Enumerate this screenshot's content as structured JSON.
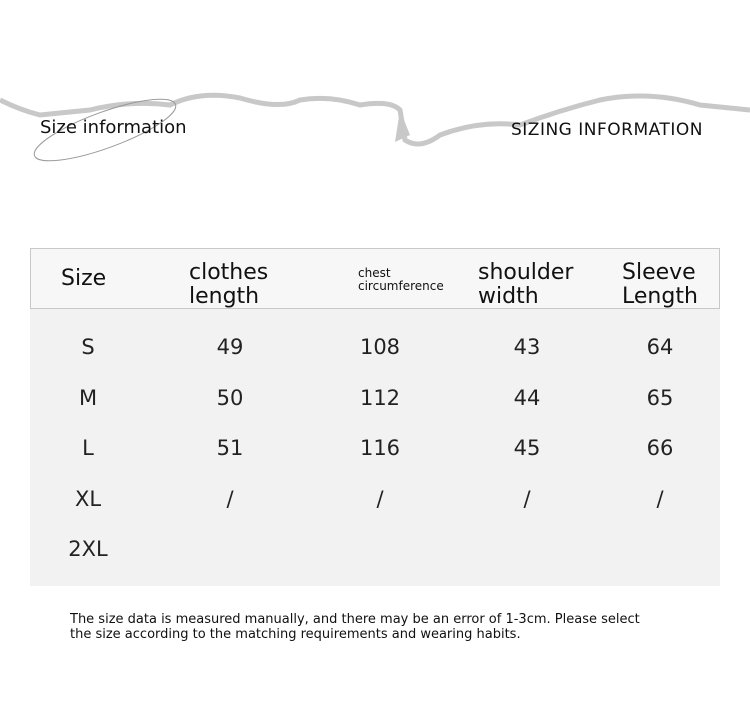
{
  "header": {
    "title_left": "Size information",
    "title_right": "SIZING INFORMATION"
  },
  "table": {
    "columns": [
      {
        "line1": "Size",
        "line2": ""
      },
      {
        "line1": "clothes",
        "line2": "length"
      },
      {
        "line1": "chest",
        "line2": "circumference"
      },
      {
        "line1": "shoulder",
        "line2": "width"
      },
      {
        "line1": "Sleeve",
        "line2": "Length"
      }
    ],
    "rows": [
      [
        "S",
        "49",
        "108",
        "43",
        "64"
      ],
      [
        "M",
        "50",
        "112",
        "44",
        "65"
      ],
      [
        "L",
        "51",
        "116",
        "45",
        "66"
      ],
      [
        "XL",
        "/",
        "/",
        "/",
        "/"
      ],
      [
        "2XL",
        "",
        "",
        "",
        ""
      ]
    ]
  },
  "note": {
    "line1": "The size data is measured manually, and there may be an error of 1-3cm. Please select",
    "line2": "the size according to the matching requirements and wearing habits."
  },
  "colors": {
    "table_bg": "#f2f2f2",
    "header_border": "#c8c8c8",
    "deco": "#c8c8c8"
  }
}
